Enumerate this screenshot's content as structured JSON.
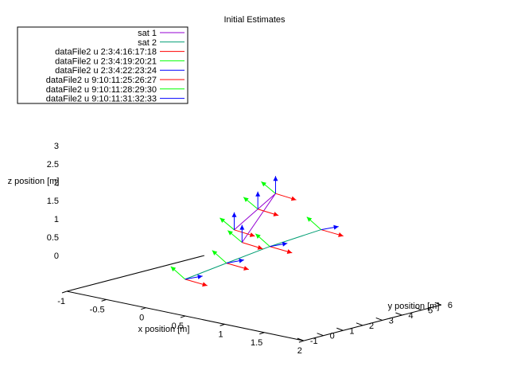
{
  "chart_data": {
    "type": "line3d",
    "title": "Initial Estimates",
    "xlabel": "x position [m]",
    "ylabel": "y position [m]",
    "zlabel": "z position [m]",
    "xlim": [
      -1,
      2
    ],
    "ylim": [
      -1,
      6
    ],
    "zlim": [
      0,
      3
    ],
    "x_ticks": [
      "-1",
      "-0.5",
      "0",
      "0.5",
      "1",
      "1.5",
      "2"
    ],
    "y_ticks": [
      "-1",
      "0",
      "1",
      "2",
      "3",
      "4",
      "5",
      "6"
    ],
    "z_ticks": [
      "0",
      "0.5",
      "1",
      "1.5",
      "2",
      "2.5",
      "3"
    ],
    "grid": false,
    "legend_position": "top-left",
    "legend": [
      {
        "name": "sat 1",
        "color": "#9400d3"
      },
      {
        "name": "sat 2",
        "color": "#009e73"
      },
      {
        "name": "dataFile2 u 2:3:4:16:17:18",
        "color": "#ff0000"
      },
      {
        "name": "dataFile2 u 2:3:4:19:20:21",
        "color": "#00ff00"
      },
      {
        "name": "dataFile2 u 2:3:4:22:23:24",
        "color": "#0000ff"
      },
      {
        "name": "dataFile2 u 9:10:11:25:26:27",
        "color": "#ff0000"
      },
      {
        "name": "dataFile2 u 9:10:11:28:29:30",
        "color": "#00ff00"
      },
      {
        "name": "dataFile2 u 9:10:11:31:32:33",
        "color": "#0000ff"
      }
    ],
    "series": [
      {
        "name": "sat 1",
        "color": "#9400d3",
        "points": [
          [
            0,
            3.5,
            1.5
          ],
          [
            0.1,
            4.3,
            2.0
          ],
          [
            0.2,
            4.8,
            2.4
          ],
          [
            -0.1,
            4.3,
            1.0
          ]
        ]
      },
      {
        "name": "sat 2",
        "color": "#009e73",
        "points": [
          [
            0,
            1.0,
            0.5
          ],
          [
            0.35,
            1.7,
            1.0
          ],
          [
            0.7,
            2.5,
            1.5
          ],
          [
            1.1,
            3.5,
            2.0
          ]
        ]
      }
    ],
    "frames": [
      {
        "s": 0,
        "p": [
          0,
          3.5,
          1.5
        ]
      },
      {
        "s": 0,
        "p": [
          0.1,
          4.3,
          2.0
        ]
      },
      {
        "s": 0,
        "p": [
          0.2,
          4.8,
          2.4
        ]
      },
      {
        "s": 0,
        "p": [
          -0.1,
          4.3,
          1.0
        ]
      },
      {
        "s": 1,
        "p": [
          0,
          1.0,
          0.5
        ]
      },
      {
        "s": 1,
        "p": [
          0.35,
          1.7,
          1.0
        ]
      },
      {
        "s": 1,
        "p": [
          0.7,
          2.5,
          1.5
        ]
      },
      {
        "s": 1,
        "p": [
          1.1,
          3.5,
          2.0
        ]
      }
    ]
  }
}
